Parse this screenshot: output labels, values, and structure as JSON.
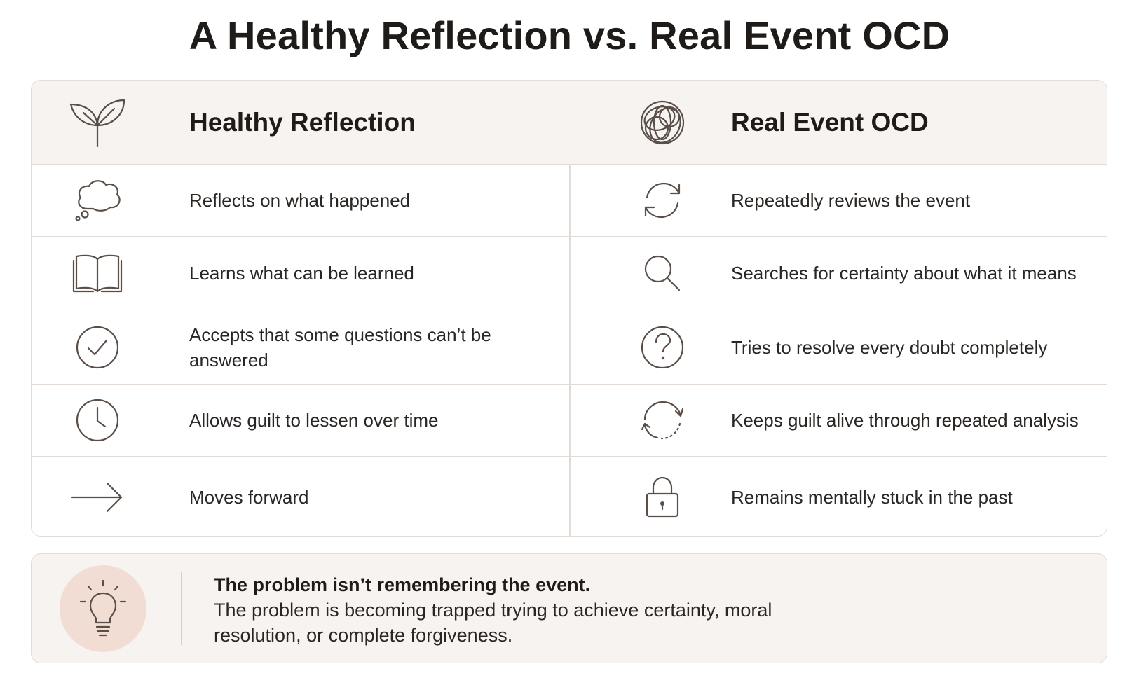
{
  "title": "A Healthy Reflection vs. Real Event OCD",
  "columns": {
    "left": {
      "heading": "Healthy Reflection",
      "icon": "sprout-icon"
    },
    "right": {
      "heading": "Real Event OCD",
      "icon": "tangled-circles-icon"
    }
  },
  "rows": [
    {
      "left": {
        "text": "Reflects on what happened",
        "icon": "thought-bubble-icon"
      },
      "right": {
        "text": "Repeatedly reviews the event",
        "icon": "refresh-cycle-icon"
      }
    },
    {
      "left": {
        "text": "Learns what can be learned",
        "icon": "open-book-icon"
      },
      "right": {
        "text": "Searches for certainty about what it means",
        "icon": "magnifier-icon"
      }
    },
    {
      "left": {
        "text": "Accepts that some questions can’t be answered",
        "icon": "check-circle-icon"
      },
      "right": {
        "text": "Tries to resolve every doubt completely",
        "icon": "question-circle-icon"
      }
    },
    {
      "left": {
        "text": "Allows guilt to lessen over time",
        "icon": "clock-icon"
      },
      "right": {
        "text": "Keeps guilt alive through repeated analysis",
        "icon": "dotted-cycle-icon"
      }
    },
    {
      "left": {
        "text": "Moves forward",
        "icon": "arrow-right-icon"
      },
      "right": {
        "text": "Remains mentally stuck in the past",
        "icon": "padlock-icon"
      }
    }
  ],
  "callout": {
    "icon": "lightbulb-icon",
    "bold": "The problem isn’t remembering the event.",
    "body": "The problem is becoming trapped trying to achieve certainty, moral resolution, or complete forgiveness."
  },
  "colors": {
    "header_background": "#f7f3f0",
    "border": "#e3dcd6",
    "icon_stroke": "#5a4f48",
    "bulb_circle": "#f1ddd4",
    "text": "#2a2623"
  }
}
